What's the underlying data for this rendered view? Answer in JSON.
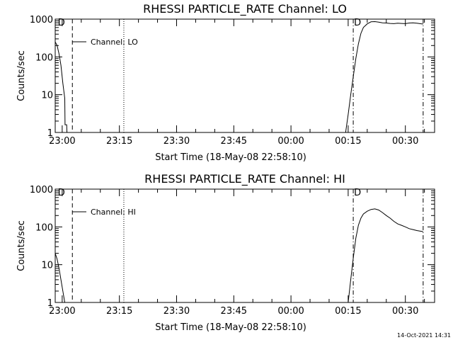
{
  "footer": {
    "timestamp": "14-Oct-2021 14:31"
  },
  "chart_data": [
    {
      "type": "line",
      "title": "RHESSI PARTICLE_RATE Channel: LO",
      "xlabel": "Start Time (18-May-08 22:58:10)",
      "ylabel": "Counts/sec",
      "yscale": "log",
      "ylim": [
        1,
        1000
      ],
      "xlim": [
        "22:58:10",
        "00:37:40"
      ],
      "y_ticks": [
        "1",
        "10",
        "100",
        "1000"
      ],
      "x_ticks": [
        "23:00",
        "23:15",
        "23:30",
        "23:45",
        "00:00",
        "00:15",
        "00:30"
      ],
      "legend": "Channel: LO",
      "legend_placement": "top-left",
      "annotations": [
        {
          "label": "D",
          "x": "22:58:40"
        },
        {
          "label": "D",
          "x": "00:16:20"
        }
      ],
      "vertical_lines": [
        {
          "x": "23:02:40",
          "style": "dashed"
        },
        {
          "x": "23:16:10",
          "style": "dotted"
        },
        {
          "x": "00:16:20",
          "style": "dash-dot"
        },
        {
          "x": "00:34:40",
          "style": "dash-dot"
        }
      ],
      "series": [
        {
          "x": [
            "22:58:10",
            "22:58:40",
            "22:59:10",
            "22:59:40",
            "23:00:10",
            "23:00:40",
            "23:00:45",
            "23:01:10",
            "23:01:15",
            "23:01:30"
          ],
          "y": [
            250,
            200,
            120,
            60,
            20,
            8,
            1.6,
            1.6,
            1,
            1
          ]
        },
        {
          "x": [
            "00:14:20",
            "00:15:00",
            "00:15:40",
            "00:16:20",
            "00:17:00",
            "00:17:40",
            "00:18:20",
            "00:19:00",
            "00:20:00",
            "00:21:00",
            "00:22:00",
            "00:23:00",
            "00:24:00",
            "00:25:00",
            "00:26:00",
            "00:27:00",
            "00:28:00",
            "00:29:00",
            "00:30:00",
            "00:31:00",
            "00:32:00",
            "00:33:00",
            "00:34:40"
          ],
          "y": [
            1,
            3,
            10,
            30,
            90,
            220,
            420,
            600,
            750,
            850,
            860,
            830,
            800,
            790,
            770,
            760,
            780,
            770,
            760,
            790,
            800,
            780,
            740
          ]
        }
      ]
    },
    {
      "type": "line",
      "title": "RHESSI PARTICLE_RATE Channel: HI",
      "xlabel": "Start Time (18-May-08 22:58:10)",
      "ylabel": "Counts/sec",
      "yscale": "log",
      "ylim": [
        1,
        1000
      ],
      "xlim": [
        "22:58:10",
        "00:37:40"
      ],
      "y_ticks": [
        "1",
        "10",
        "100",
        "1000"
      ],
      "x_ticks": [
        "23:00",
        "23:15",
        "23:30",
        "23:45",
        "00:00",
        "00:15",
        "00:30"
      ],
      "legend": "Channel: HI",
      "legend_placement": "top-left",
      "annotations": [
        {
          "label": "D",
          "x": "22:58:40"
        },
        {
          "label": "D",
          "x": "00:16:20"
        }
      ],
      "vertical_lines": [
        {
          "x": "23:02:40",
          "style": "dashed"
        },
        {
          "x": "23:16:10",
          "style": "dotted"
        },
        {
          "x": "00:16:20",
          "style": "dash-dot"
        },
        {
          "x": "00:34:40",
          "style": "dash-dot"
        }
      ],
      "series": [
        {
          "x": [
            "22:58:10",
            "22:58:40",
            "22:59:10",
            "22:59:40",
            "23:00:10",
            "23:00:40"
          ],
          "y": [
            20,
            14,
            8,
            4,
            2,
            1
          ]
        },
        {
          "x": [
            "00:15:00",
            "00:15:40",
            "00:16:20",
            "00:17:00",
            "00:17:40",
            "00:18:20",
            "00:19:00",
            "00:20:00",
            "00:21:00",
            "00:22:00",
            "00:23:00",
            "00:24:00",
            "00:25:00",
            "00:26:00",
            "00:27:00",
            "00:28:00",
            "00:29:00",
            "00:30:00",
            "00:31:00",
            "00:32:00",
            "00:33:00",
            "00:34:40"
          ],
          "y": [
            1,
            4,
            15,
            50,
            110,
            170,
            220,
            260,
            290,
            300,
            280,
            240,
            200,
            170,
            140,
            120,
            110,
            100,
            90,
            85,
            80,
            75
          ]
        }
      ]
    }
  ]
}
